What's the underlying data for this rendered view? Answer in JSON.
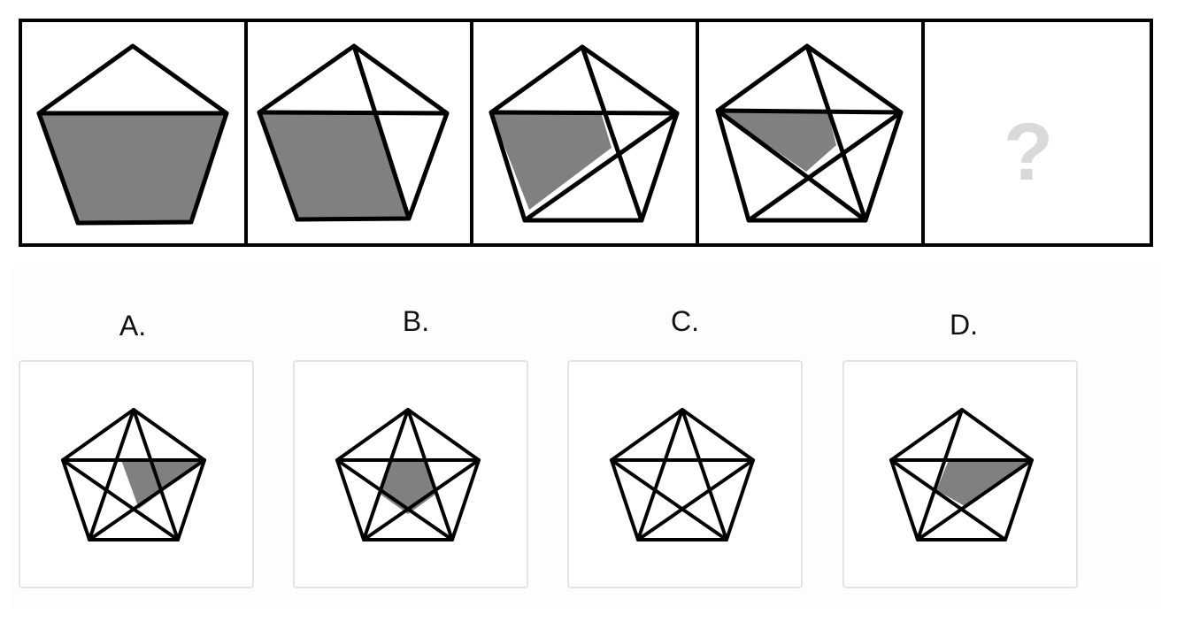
{
  "sequence": {
    "panel_count": 5,
    "question_mark": "?"
  },
  "options": [
    {
      "label": "A."
    },
    {
      "label": "B."
    },
    {
      "label": "C."
    },
    {
      "label": "D."
    }
  ],
  "colors": {
    "stroke": "#000000",
    "shade": "#808080",
    "question_mark": "#d9d9d9",
    "card_border": "#e4e4e4",
    "panel_background": "#fdfdfd"
  }
}
